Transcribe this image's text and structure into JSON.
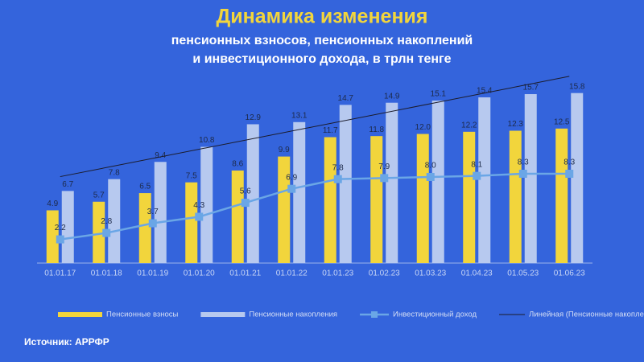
{
  "chart_data": {
    "type": "bar",
    "title": "Динамика изменения",
    "subtitle": [
      "пенсионных взносов, пенсионных накоплений",
      "и инвестиционного дохода, в трлн тенге"
    ],
    "categories": [
      "01.01.17",
      "01.01.18",
      "01.01.19",
      "01.01.20",
      "01.01.21",
      "01.01.22",
      "01.01.23",
      "01.02.23",
      "01.03.23",
      "01.04.23",
      "01.05.23",
      "01.06.23"
    ],
    "series": [
      {
        "name": "Пенсионные взносы",
        "type": "bar",
        "color": "#f2d53c",
        "values": [
          4.9,
          5.7,
          6.5,
          7.5,
          8.6,
          9.9,
          11.7,
          11.8,
          12.0,
          12.2,
          12.3,
          12.5
        ],
        "value_labels": [
          "4.9",
          "5.7",
          "6.5",
          "7.5",
          "8.6",
          "9.9",
          "11.7",
          "11.8",
          "12.0",
          "12.2",
          "12.3",
          "12.5"
        ]
      },
      {
        "name": "Пенсионные накопления",
        "type": "bar",
        "color": "#b7c9ef",
        "values": [
          6.7,
          7.8,
          9.4,
          10.8,
          12.9,
          13.1,
          14.7,
          14.9,
          15.1,
          15.4,
          15.7,
          15.8
        ],
        "value_labels": [
          "6.7",
          "7.8",
          "9.4",
          "10.8",
          "12.9",
          "13.1",
          "14.7",
          "14.9",
          "15.1",
          "15.4",
          "15.7",
          "15.8"
        ]
      },
      {
        "name": "Инвестиционный доход",
        "type": "line",
        "color": "#6aa6e6",
        "values": [
          2.2,
          2.8,
          3.7,
          4.3,
          5.6,
          6.9,
          7.8,
          7.9,
          8.0,
          8.1,
          8.3,
          8.3
        ],
        "value_labels": [
          "2.2",
          "2.8",
          "3.7",
          "4.3",
          "5.6",
          "6.9",
          "7.8",
          "7.9",
          "8.0",
          "8.1",
          "8.3",
          "8.3"
        ]
      }
    ],
    "trendline": {
      "name": "Линейная (Пенсионные накопления)",
      "series": 1,
      "color": "#1b1b2a"
    },
    "ylim": [
      0,
      16
    ],
    "source": "Источник: АРРФР"
  }
}
